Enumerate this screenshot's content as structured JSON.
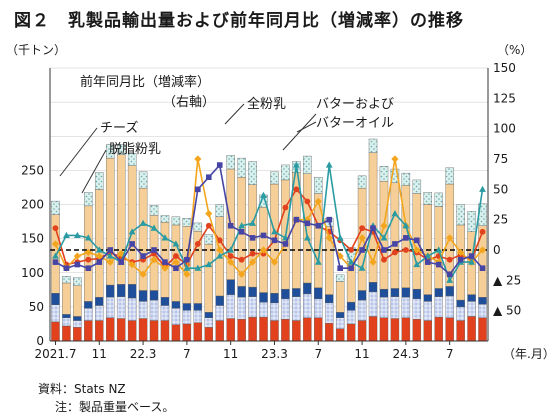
{
  "title": "図２　乳製品輸出量および前年同月比（増減率）の推移",
  "source_label": "資料：Stats NZ",
  "note_label": "注：製品重量ベース。",
  "chart_data": {
    "type": "bar+line",
    "title": "図２　乳製品輸出量および前年同月比（増減率）の推移",
    "left_axis_label": "（千トン）",
    "right_axis_label": "（%）",
    "x_axis_unit": "（年.月）",
    "left_ylim": [
      0,
      400
    ],
    "left_ticks": [
      0,
      50,
      100,
      150,
      200,
      250,
      300,
      350,
      400
    ],
    "left_tick_labels": [
      "0",
      "50",
      "100",
      "150",
      "200",
      "250",
      "300",
      "350",
      "400"
    ],
    "right_ylim": [
      -75,
      150
    ],
    "right_ticks": [
      -50,
      -25,
      0,
      25,
      50,
      75,
      100,
      125,
      150
    ],
    "right_tick_labels": [
      "▲ 50",
      "▲ 25",
      "0",
      "25",
      "50",
      "75",
      "100",
      "125",
      "150"
    ],
    "x_tick_labels": [
      {
        "label": "2021.7",
        "index": 0
      },
      {
        "label": "11",
        "index": 4
      },
      {
        "label": "22.3",
        "index": 8
      },
      {
        "label": "7",
        "index": 12
      },
      {
        "label": "11",
        "index": 16
      },
      {
        "label": "23.3",
        "index": 20
      },
      {
        "label": "7",
        "index": 24
      },
      {
        "label": "11",
        "index": 28
      },
      {
        "label": "24.3",
        "index": 32
      },
      {
        "label": "7",
        "index": 36
      }
    ],
    "annotation_yoy": "前年同月比（増減率）",
    "annotation_right_axis": "（右軸）",
    "labels": {
      "cheese": "チーズ",
      "smp": "脱脂粉乳",
      "wmp": "全粉乳",
      "butter1": "バターおよび",
      "butter2": "バターオイル"
    },
    "colors": {
      "cheese": "#e2411d",
      "smp": "#b7c5ea",
      "butter": "#1f4f9a",
      "wmp": "#f5cf97",
      "other": "#d9f0ec",
      "cheese_line": "#e2411d",
      "smp_line": "#f3a51d",
      "wmp_line": "#2a9ba3",
      "butter_line": "#4645a6",
      "zero_line": "#000000"
    },
    "stack_series": [
      {
        "key": "cheese",
        "values": [
          28,
          22,
          20,
          30,
          30,
          34,
          33,
          30,
          33,
          30,
          30,
          24,
          25,
          27,
          20,
          30,
          33,
          32,
          35,
          35,
          30,
          32,
          30,
          34,
          34,
          26,
          18,
          25,
          30,
          36,
          34,
          33,
          34,
          32,
          30,
          35,
          34,
          30,
          36,
          34
        ]
      },
      {
        "key": "smp",
        "values": [
          25,
          12,
          10,
          18,
          22,
          30,
          32,
          33,
          25,
          30,
          22,
          24,
          20,
          18,
          14,
          22,
          35,
          32,
          30,
          22,
          26,
          30,
          35,
          35,
          28,
          30,
          16,
          20,
          30,
          36,
          30,
          32,
          30,
          30,
          28,
          30,
          32,
          20,
          22,
          20
        ]
      },
      {
        "key": "butter",
        "values": [
          17,
          5,
          6,
          10,
          12,
          18,
          18,
          20,
          16,
          14,
          12,
          10,
          10,
          10,
          8,
          14,
          22,
          16,
          14,
          14,
          14,
          14,
          12,
          16,
          16,
          12,
          8,
          12,
          14,
          14,
          12,
          12,
          14,
          14,
          10,
          12,
          14,
          10,
          10,
          10
        ]
      },
      {
        "key": "wmp",
        "values": [
          115,
          46,
          45,
          140,
          158,
          186,
          190,
          174,
          150,
          110,
          110,
          112,
          113,
          106,
          100,
          116,
          162,
          160,
          150,
          125,
          160,
          160,
          170,
          160,
          138,
          100,
          45,
          60,
          150,
          190,
          158,
          155,
          150,
          140,
          132,
          120,
          150,
          110,
          92,
          105
        ]
      },
      {
        "key": "other",
        "values": [
          20,
          10,
          12,
          20,
          25,
          20,
          15,
          18,
          24,
          15,
          10,
          12,
          12,
          12,
          14,
          18,
          20,
          28,
          34,
          18,
          18,
          22,
          16,
          26,
          24,
          12,
          10,
          20,
          18,
          20,
          22,
          20,
          18,
          20,
          18,
          20,
          24,
          30,
          30,
          32
        ]
      }
    ],
    "series": [
      {
        "key": "cheese_yoy",
        "values": [
          18,
          -12,
          -10,
          -8,
          -7,
          -2,
          -6,
          -10,
          -8,
          -3,
          -14,
          -5,
          -12,
          5,
          20,
          8,
          -5,
          -8,
          -3,
          -3,
          8,
          35,
          50,
          40,
          20,
          15,
          8,
          0,
          18,
          15,
          -8,
          -2,
          0,
          -2,
          -8,
          -5,
          -8,
          -4,
          -8,
          15
        ]
      },
      {
        "key": "smp_yoy",
        "values": [
          5,
          -15,
          -5,
          -2,
          -5,
          -10,
          -3,
          -12,
          -20,
          -8,
          -15,
          -10,
          -20,
          75,
          30,
          0,
          -10,
          -20,
          -10,
          0,
          -10,
          5,
          25,
          25,
          40,
          10,
          -5,
          -15,
          10,
          -10,
          20,
          75,
          20,
          0,
          -5,
          -10,
          10,
          -2,
          -10,
          0
        ]
      },
      {
        "key": "wmp_yoy",
        "values": [
          -5,
          12,
          12,
          10,
          0,
          -5,
          -10,
          15,
          22,
          18,
          10,
          5,
          -15,
          -15,
          -12,
          -5,
          0,
          20,
          22,
          45,
          15,
          10,
          70,
          10,
          -10,
          70,
          10,
          -10,
          -15,
          20,
          10,
          30,
          20,
          -12,
          -5,
          0,
          -25,
          -10,
          -10,
          50
        ]
      },
      {
        "key": "butter_yoy",
        "values": [
          -10,
          -15,
          -12,
          -15,
          -10,
          0,
          -10,
          5,
          -5,
          0,
          -10,
          -15,
          -8,
          50,
          60,
          70,
          20,
          15,
          10,
          12,
          8,
          5,
          25,
          22,
          20,
          25,
          -15,
          -15,
          0,
          18,
          0,
          5,
          10,
          8,
          -10,
          -12,
          -20,
          -8,
          -5,
          -15
        ]
      }
    ]
  }
}
